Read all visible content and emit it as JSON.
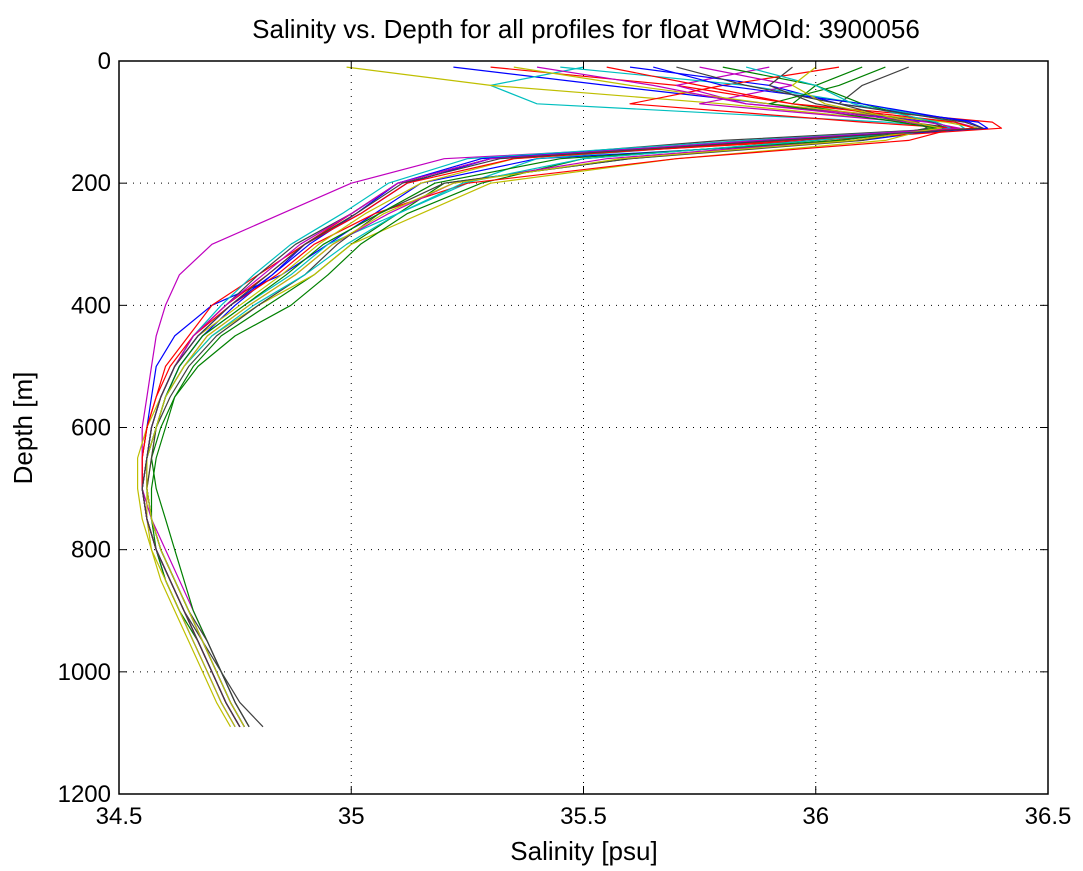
{
  "chart_data": {
    "type": "line",
    "title": "Salinity vs. Depth for all profiles for float WMOId: 3900056",
    "xlabel": "Salinity [psu]",
    "ylabel": "Depth [m]",
    "xlim": [
      34.5,
      36.5
    ],
    "ylim": [
      0,
      1200
    ],
    "y_reversed": true,
    "grid": true,
    "xticks": [
      "34.5",
      "35",
      "35.5",
      "36",
      "36.5"
    ],
    "yticks": [
      "0",
      "200",
      "400",
      "600",
      "800",
      "1000",
      "1200"
    ],
    "xtick_values": [
      34.5,
      35.0,
      35.5,
      36.0,
      36.5
    ],
    "ytick_values": [
      0,
      200,
      400,
      600,
      800,
      1000,
      1200
    ],
    "colors": [
      "#0000ff",
      "#008000",
      "#ff0000",
      "#00bfbf",
      "#bf00bf",
      "#bfbf00",
      "#404040"
    ],
    "depths": [
      10,
      40,
      70,
      100,
      110,
      130,
      160,
      200,
      250,
      300,
      350,
      400,
      450,
      500,
      550,
      600,
      650,
      700,
      750,
      800,
      850,
      900,
      950,
      1000,
      1050,
      1090
    ],
    "series": [
      {
        "values": [
          35.22,
          35.55,
          35.9,
          36.25,
          36.3,
          36.1,
          35.4,
          35.15,
          35.05,
          34.95,
          34.85,
          34.7,
          34.62,
          34.58,
          34.57,
          34.56,
          34.55,
          34.55,
          34.56,
          34.58,
          34.6,
          34.63,
          34.66,
          34.69,
          34.72,
          34.75
        ]
      },
      {
        "values": [
          36.1,
          36.0,
          35.95,
          36.2,
          36.25,
          36.05,
          35.6,
          35.2,
          35.1,
          35.0,
          34.92,
          34.82,
          34.72,
          34.66,
          34.62,
          34.6,
          34.58,
          34.57,
          34.57,
          34.58,
          34.6,
          34.63,
          34.67,
          34.7,
          34.73,
          34.76
        ]
      },
      {
        "values": [
          35.3,
          35.7,
          35.95,
          36.38,
          36.4,
          36.0,
          35.3,
          35.1,
          35.0,
          34.9,
          34.8,
          34.7,
          34.65,
          34.6,
          34.58,
          34.56,
          34.55,
          34.55,
          34.56,
          34.58,
          34.61,
          34.64,
          34.67,
          34.7,
          34.73,
          34.76
        ]
      },
      {
        "values": [
          35.5,
          35.3,
          35.4,
          36.15,
          36.3,
          35.9,
          35.4,
          35.25,
          35.1,
          34.95,
          34.87,
          34.77,
          34.68,
          34.63,
          34.6,
          34.58,
          34.56,
          34.56,
          34.57,
          34.59,
          34.62,
          34.65,
          34.68,
          34.71,
          34.74,
          34.77
        ]
      },
      {
        "values": [
          35.9,
          35.7,
          35.85,
          36.3,
          36.35,
          35.95,
          35.2,
          35.0,
          34.85,
          34.7,
          34.63,
          34.6,
          34.58,
          34.57,
          34.56,
          34.55,
          34.55,
          34.55,
          34.57,
          34.6,
          34.63,
          34.66,
          34.69,
          34.72,
          34.75,
          34.78
        ]
      },
      {
        "values": [
          34.99,
          35.3,
          35.8,
          36.2,
          36.25,
          36.15,
          35.7,
          35.3,
          35.15,
          35.0,
          34.92,
          34.8,
          34.7,
          34.64,
          34.6,
          34.58,
          34.57,
          34.56,
          34.56,
          34.57,
          34.59,
          34.62,
          34.65,
          34.68,
          34.71,
          34.74
        ]
      },
      {
        "values": [
          36.2,
          36.1,
          36.05,
          36.2,
          36.3,
          35.8,
          35.3,
          35.1,
          35.0,
          34.88,
          34.8,
          34.73,
          34.66,
          34.62,
          34.59,
          34.57,
          34.56,
          34.55,
          34.56,
          34.58,
          34.61,
          34.64,
          34.68,
          34.72,
          34.76,
          34.81
        ]
      },
      {
        "values": [
          35.6,
          35.9,
          36.05,
          36.35,
          36.37,
          35.95,
          35.3,
          35.12,
          35.02,
          34.9,
          34.83,
          34.75,
          34.68,
          34.63,
          34.6,
          34.58,
          34.56,
          34.56,
          34.57,
          34.59,
          34.62,
          34.65,
          34.68,
          34.71,
          34.74,
          34.77
        ]
      },
      {
        "values": [
          35.8,
          36.0,
          36.1,
          36.25,
          36.28,
          36.0,
          35.5,
          35.28,
          35.12,
          35.02,
          34.95,
          34.87,
          34.75,
          34.67,
          34.62,
          34.59,
          34.57,
          34.58,
          34.6,
          34.62,
          34.64,
          34.66,
          34.69,
          34.72,
          34.75,
          34.78
        ]
      },
      {
        "values": [
          36.05,
          35.8,
          35.6,
          36.1,
          36.3,
          36.2,
          35.7,
          35.25,
          35.05,
          34.92,
          34.84,
          34.74,
          34.66,
          34.62,
          34.59,
          34.57,
          34.56,
          34.56,
          34.57,
          34.59,
          34.62,
          34.65,
          34.68,
          34.71,
          34.74,
          34.77
        ]
      },
      {
        "values": [
          35.45,
          35.85,
          36.1,
          36.3,
          36.32,
          35.85,
          35.25,
          35.08,
          34.98,
          34.87,
          34.79,
          34.72,
          34.66,
          34.62,
          34.59,
          34.57,
          34.56,
          34.55,
          34.56,
          34.58,
          34.61,
          34.64,
          34.67,
          34.7,
          34.73,
          34.76
        ]
      },
      {
        "values": [
          35.75,
          35.95,
          35.75,
          36.2,
          36.27,
          36.05,
          35.55,
          35.22,
          35.08,
          34.96,
          34.88,
          34.78,
          34.69,
          34.64,
          34.6,
          34.58,
          34.56,
          34.56,
          34.57,
          34.59,
          34.62,
          34.65,
          34.68,
          34.71,
          34.74,
          34.77
        ]
      },
      {
        "values": [
          35.35,
          35.6,
          35.9,
          36.28,
          36.35,
          35.9,
          35.35,
          35.15,
          35.03,
          34.93,
          34.85,
          34.76,
          34.67,
          34.62,
          34.59,
          34.56,
          34.54,
          34.54,
          34.55,
          34.57,
          34.6,
          34.63,
          34.66,
          34.69,
          34.72,
          34.75
        ]
      },
      {
        "values": [
          35.95,
          35.9,
          36.0,
          36.22,
          36.24,
          36.1,
          35.6,
          35.2,
          35.06,
          34.97,
          34.9,
          34.8,
          34.71,
          34.65,
          34.61,
          34.58,
          34.57,
          34.56,
          34.57,
          34.59,
          34.62,
          34.65,
          34.69,
          34.72,
          34.75,
          34.78
        ]
      },
      {
        "values": [
          35.65,
          35.8,
          36.1,
          36.33,
          36.36,
          35.9,
          35.28,
          35.1,
          35.01,
          34.91,
          34.83,
          34.74,
          34.67,
          34.62,
          34.59,
          34.57,
          34.56,
          34.55,
          34.56,
          34.58,
          34.61,
          34.64,
          34.67,
          34.7,
          34.73,
          34.76
        ]
      },
      {
        "values": [
          36.15,
          36.05,
          35.9,
          36.18,
          36.26,
          36.05,
          35.45,
          35.18,
          35.06,
          34.94,
          34.86,
          34.77,
          34.68,
          34.63,
          34.6,
          34.58,
          34.56,
          34.55,
          34.56,
          34.58,
          34.61,
          34.64,
          34.67,
          34.7,
          34.73,
          34.76
        ]
      },
      {
        "values": [
          35.55,
          35.75,
          35.95,
          36.3,
          36.34,
          35.95,
          35.35,
          35.12,
          35.02,
          34.9,
          34.82,
          34.73,
          34.66,
          34.61,
          34.58,
          34.56,
          34.55,
          34.55,
          34.56,
          34.58,
          34.61,
          34.64,
          34.67,
          34.7,
          34.73,
          34.76
        ]
      },
      {
        "values": [
          35.85,
          36.0,
          36.08,
          36.26,
          36.29,
          36.0,
          35.5,
          35.24,
          35.1,
          34.99,
          34.9,
          34.79,
          34.7,
          34.64,
          34.6,
          34.58,
          34.56,
          34.56,
          34.57,
          34.59,
          34.62,
          34.65,
          34.68,
          34.71,
          34.74,
          34.77
        ]
      },
      {
        "values": [
          35.4,
          35.65,
          35.85,
          36.24,
          36.31,
          35.88,
          35.3,
          35.1,
          35.0,
          34.89,
          34.81,
          34.73,
          34.66,
          34.62,
          34.59,
          34.57,
          34.56,
          34.55,
          34.56,
          34.58,
          34.61,
          34.64,
          34.67,
          34.7,
          34.73,
          34.76
        ]
      },
      {
        "values": [
          36.0,
          35.95,
          36.02,
          36.21,
          36.27,
          36.08,
          35.58,
          35.22,
          35.07,
          34.96,
          34.88,
          34.78,
          34.69,
          34.64,
          34.6,
          34.58,
          34.56,
          34.56,
          34.57,
          34.59,
          34.62,
          34.65,
          34.68,
          34.71,
          34.74,
          34.77
        ]
      },
      {
        "values": [
          35.7,
          35.85,
          36.05,
          36.32,
          36.36,
          35.92,
          35.32,
          35.11,
          35.01,
          34.9,
          34.82,
          34.74,
          34.67,
          34.62,
          34.59,
          34.57,
          34.56,
          34.55,
          34.56,
          34.58,
          34.61,
          34.64,
          34.67,
          34.7,
          34.73,
          34.76
        ]
      }
    ]
  }
}
